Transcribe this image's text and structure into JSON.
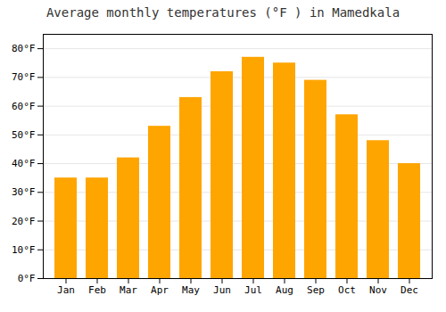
{
  "chart_data": {
    "type": "bar",
    "title": "Average monthly temperatures (°F ) in Mamedkala",
    "categories": [
      "Jan",
      "Feb",
      "Mar",
      "Apr",
      "May",
      "Jun",
      "Jul",
      "Aug",
      "Sep",
      "Oct",
      "Nov",
      "Dec"
    ],
    "values": [
      35,
      35,
      42,
      53,
      63,
      72,
      77,
      75,
      69,
      57,
      48,
      40
    ],
    "color": "#FFA500",
    "ylim": [
      0,
      85
    ],
    "yticks": [
      {
        "value": 0,
        "label": "0°F"
      },
      {
        "value": 10,
        "label": "10°F"
      },
      {
        "value": 20,
        "label": "20°F"
      },
      {
        "value": 30,
        "label": "30°F"
      },
      {
        "value": 40,
        "label": "40°F"
      },
      {
        "value": 50,
        "label": "50°F"
      },
      {
        "value": 60,
        "label": "60°F"
      },
      {
        "value": 70,
        "label": "70°F"
      },
      {
        "value": 80,
        "label": "80°F"
      }
    ],
    "grid": true
  }
}
